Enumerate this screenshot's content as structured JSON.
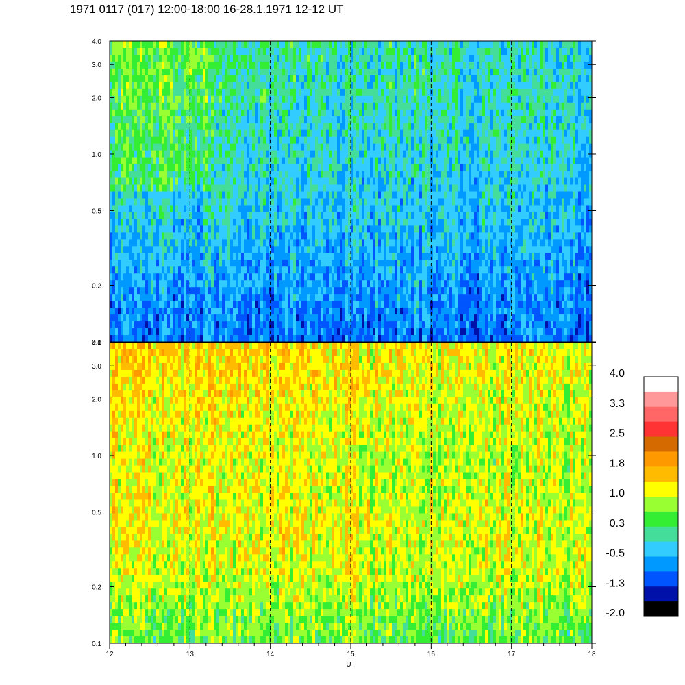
{
  "title": "1971 0117 (017) 12:00-18:00 16-28.1.1971  12-12 UT",
  "chart_data": {
    "type": "heatmap",
    "title": "1971 0117 (017) 12:00-18:00 16-28.1.1971  12-12 UT",
    "xlabel": "UT",
    "ylabel": "",
    "xlim": [
      12,
      18
    ],
    "x_ticks": [
      "12",
      "13",
      "14",
      "15",
      "16",
      "17",
      "18"
    ],
    "x_dashed_lines": [
      13,
      14,
      15,
      16,
      17
    ],
    "panels": [
      {
        "name": "",
        "ylim": [
          0.1,
          4.0
        ],
        "y_scale": "log",
        "y_ticks": [
          {
            "value": 0.1,
            "label": "0.1"
          },
          {
            "value": 0.2,
            "label": "0.2"
          },
          {
            "value": 0.5,
            "label": "0.5"
          },
          {
            "value": 1.0,
            "label": "1.0"
          },
          {
            "value": 2.0,
            "label": "2.0"
          },
          {
            "value": 3.0,
            "label": "3.0"
          },
          {
            "value": 4.0,
            "label": "4.0"
          }
        ],
        "dominant_levels": "mostly -0.5 to 1.0 (blue/cyan/green), higher at low frequencies early",
        "level_profile": [
          0.6,
          0.5,
          0.3,
          0.1,
          -0.2,
          -0.5
        ]
      },
      {
        "name": "",
        "ylim": [
          0.1,
          4.0
        ],
        "y_scale": "log",
        "y_ticks": [
          {
            "value": 0.1,
            "label": "0.1"
          },
          {
            "value": 0.2,
            "label": "0.2"
          },
          {
            "value": 0.5,
            "label": "0.5"
          },
          {
            "value": 1.0,
            "label": "1.0"
          },
          {
            "value": 2.0,
            "label": "2.0"
          },
          {
            "value": 3.0,
            "label": "3.0"
          },
          {
            "value": 4.0,
            "label": "4.0"
          }
        ],
        "dominant_levels": "mostly 1.0 to 2.5 (yellow/orange), highest at low frequencies before 14 UT",
        "level_profile": [
          1.9,
          1.7,
          1.5,
          1.6,
          1.4,
          0.9
        ]
      }
    ],
    "colorbar": {
      "labels": [
        "4.0",
        "3.3",
        "2.5",
        "1.8",
        "1.0",
        "0.3",
        "-0.5",
        "-1.3",
        "-2.0"
      ],
      "colors": [
        "#ffffff",
        "#ff9999",
        "#ff6666",
        "#ff3333",
        "#d46a00",
        "#ff9900",
        "#ffbb00",
        "#ffff00",
        "#99ff33",
        "#33ee33",
        "#44dd99",
        "#33ccff",
        "#0099ff",
        "#0055ff",
        "#0011aa",
        "#000000"
      ]
    }
  }
}
